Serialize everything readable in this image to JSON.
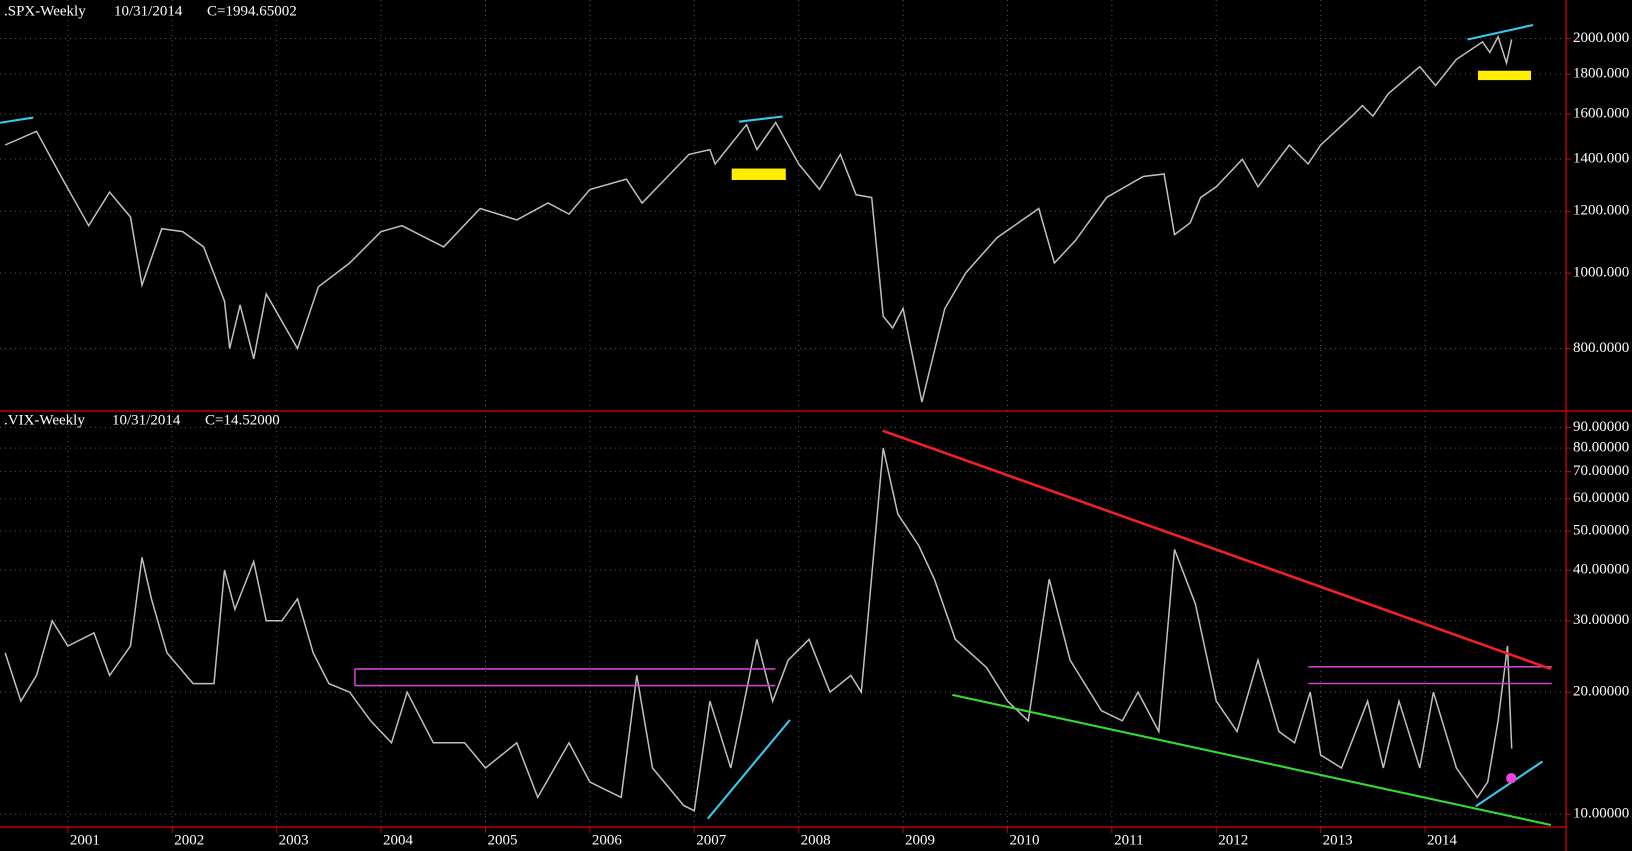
{
  "chart_data": [
    {
      "type": "line",
      "title": ".SPX-Weekly",
      "date": "10/31/2014",
      "close_label": "C=1994.65002",
      "close_color": "#00ff00",
      "color": "#c0c0c0",
      "log_scale": true,
      "grid": true,
      "x": [
        2000.4,
        2000.7,
        2000.95,
        2001.2,
        2001.4,
        2001.6,
        2001.71,
        2001.9,
        2002.1,
        2002.3,
        2002.5,
        2002.55,
        2002.65,
        2002.78,
        2002.9,
        2003.2,
        2003.4,
        2003.7,
        2004.0,
        2004.2,
        2004.6,
        2004.95,
        2005.3,
        2005.6,
        2005.8,
        2006.0,
        2006.35,
        2006.5,
        2006.95,
        2007.15,
        2007.2,
        2007.5,
        2007.6,
        2007.78,
        2008.0,
        2008.2,
        2008.4,
        2008.55,
        2008.7,
        2008.81,
        2008.9,
        2009.0,
        2009.18,
        2009.4,
        2009.6,
        2009.9,
        2010.3,
        2010.45,
        2010.65,
        2010.95,
        2011.3,
        2011.5,
        2011.6,
        2011.75,
        2011.85,
        2012.0,
        2012.25,
        2012.4,
        2012.7,
        2012.88,
        2013.0,
        2013.3,
        2013.4,
        2013.5,
        2013.65,
        2013.95,
        2014.1,
        2014.3,
        2014.55,
        2014.62,
        2014.7,
        2014.78,
        2014.83
      ],
      "values": [
        1460,
        1520,
        1320,
        1150,
        1270,
        1180,
        965,
        1140,
        1130,
        1080,
        920,
        800,
        910,
        776,
        940,
        800,
        960,
        1030,
        1130,
        1150,
        1080,
        1210,
        1170,
        1230,
        1190,
        1280,
        1320,
        1230,
        1420,
        1440,
        1380,
        1550,
        1440,
        1560,
        1380,
        1280,
        1420,
        1260,
        1250,
        880,
        850,
        900,
        683,
        900,
        1000,
        1110,
        1210,
        1030,
        1100,
        1250,
        1330,
        1340,
        1120,
        1160,
        1250,
        1290,
        1400,
        1290,
        1460,
        1380,
        1460,
        1590,
        1640,
        1590,
        1700,
        1840,
        1740,
        1880,
        1980,
        1920,
        2010,
        1860,
        1994.65
      ],
      "xlim": [
        2000.35,
        2015.35
      ],
      "xticks": [
        2001,
        2002,
        2003,
        2004,
        2005,
        2006,
        2007,
        2008,
        2009,
        2010,
        2011,
        2012,
        2013,
        2014
      ],
      "ylim": [
        665,
        2241
      ],
      "yticks": [
        {
          "value": 800,
          "label": "800.0000"
        },
        {
          "value": 1000,
          "label": "1000.000"
        },
        {
          "value": 1200,
          "label": "1200.000"
        },
        {
          "value": 1400,
          "label": "1400.000"
        },
        {
          "value": 1600,
          "label": "1600.000"
        },
        {
          "value": 1800,
          "label": "1800.000"
        },
        {
          "value": 2000,
          "label": "2000.000"
        }
      ]
    },
    {
      "type": "line",
      "title": ".VIX-Weekly",
      "date": "10/31/2014",
      "close_label": "C=14.52000",
      "close_color": "#ff2020",
      "color": "#c0c0c0",
      "log_scale": true,
      "grid": true,
      "x": [
        2000.4,
        2000.55,
        2000.7,
        2000.85,
        2001.0,
        2001.25,
        2001.4,
        2001.6,
        2001.71,
        2001.8,
        2001.95,
        2002.2,
        2002.4,
        2002.5,
        2002.6,
        2002.78,
        2002.9,
        2003.05,
        2003.2,
        2003.35,
        2003.5,
        2003.7,
        2003.9,
        2004.1,
        2004.25,
        2004.5,
        2004.8,
        2005.0,
        2005.3,
        2005.5,
        2005.8,
        2006.0,
        2006.3,
        2006.45,
        2006.6,
        2006.9,
        2007.0,
        2007.15,
        2007.35,
        2007.6,
        2007.75,
        2007.9,
        2008.1,
        2008.3,
        2008.5,
        2008.6,
        2008.81,
        2008.95,
        2009.15,
        2009.3,
        2009.5,
        2009.8,
        2010.0,
        2010.2,
        2010.4,
        2010.6,
        2010.9,
        2011.1,
        2011.25,
        2011.45,
        2011.6,
        2011.8,
        2012.0,
        2012.2,
        2012.4,
        2012.6,
        2012.75,
        2012.9,
        2013.0,
        2013.2,
        2013.45,
        2013.6,
        2013.75,
        2013.95,
        2014.08,
        2014.3,
        2014.5,
        2014.6,
        2014.7,
        2014.79,
        2014.83
      ],
      "values": [
        25,
        19,
        22,
        30,
        26,
        28,
        22,
        26,
        43,
        34,
        25,
        21,
        21,
        40,
        32,
        42,
        30,
        30,
        34,
        25,
        21,
        20,
        17,
        15,
        20,
        15,
        15,
        13,
        15,
        11,
        15,
        12,
        11,
        22,
        13,
        10.5,
        10.2,
        19,
        13,
        27,
        19,
        24,
        27,
        20,
        22,
        20,
        80,
        55,
        46,
        38,
        27,
        23,
        19,
        17,
        38,
        24,
        18,
        17,
        20,
        16,
        45,
        33,
        19,
        16,
        24,
        16,
        15,
        20,
        14,
        13,
        19,
        13,
        19,
        13,
        20,
        13,
        11,
        12,
        17,
        26,
        14.52
      ],
      "xlim": [
        2000.35,
        2015.35
      ],
      "xticks": [
        2001,
        2002,
        2003,
        2004,
        2005,
        2006,
        2007,
        2008,
        2009,
        2010,
        2011,
        2012,
        2013,
        2014
      ],
      "ylim": [
        9.3,
        96
      ],
      "yticks": [
        {
          "value": 10,
          "label": "10.00000"
        },
        {
          "value": 20,
          "label": "20.00000"
        },
        {
          "value": 30,
          "label": "30.00000"
        },
        {
          "value": 40,
          "label": "40.00000"
        },
        {
          "value": 50,
          "label": "50.00000"
        },
        {
          "value": 60,
          "label": "60.00000"
        },
        {
          "value": 70,
          "label": "70.00000"
        },
        {
          "value": 80,
          "label": "80.00000"
        },
        {
          "value": 90,
          "label": "90.00000"
        }
      ]
    }
  ]
}
